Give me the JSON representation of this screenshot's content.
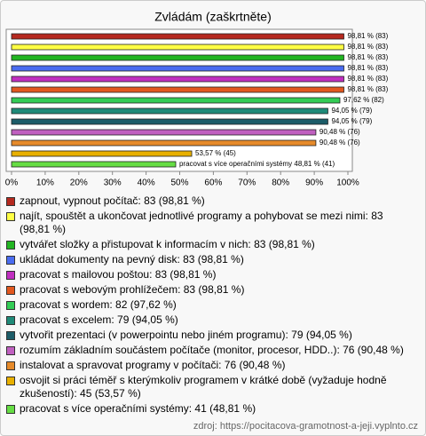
{
  "chart_data": {
    "type": "bar",
    "orientation": "horizontal",
    "title": "Zvládám (zaškrtněte)",
    "categories": [
      "zapnout, vypnout počítač: 83 (98,81 %)",
      "najít, spouštět a ukončovat jednotlivé programy a pohybovat se mezi nimi: 83 (98,81 %)",
      "vytvářet složky a přistupovat k informacím v nich: 83 (98,81 %)",
      "ukládat dokumenty na pevný disk: 83 (98,81 %)",
      "pracovat s mailovou poštou: 83 (98,81 %)",
      "pracovat s webovým prohlížečem: 83 (98,81 %)",
      "pracovat s wordem: 82 (97,62 %)",
      "pracovat s excelem: 79 (94,05 %)",
      "vytvořit prezentaci (v powerpointu nebo jiném programu): 79 (94,05 %)",
      "rozumím základním součástem počítače (monitor, procesor, HDD..): 76 (90,48 %)",
      "instalovat a spravovat programy v počítači: 76 (90,48 %)",
      "osvojit si práci téměř s kterýmkoliv programem v krátké době (vyžaduje hodně zkušeností): 45 (53,57 %)",
      "pracovat s více operačními systémy: 41 (48,81 %)"
    ],
    "values": [
      98.81,
      98.81,
      98.81,
      98.81,
      98.81,
      98.81,
      97.62,
      94.05,
      94.05,
      90.48,
      90.48,
      53.57,
      48.81
    ],
    "value_labels": [
      "98,81 % (83)",
      "98,81 % (83)",
      "98,81 % (83)",
      "98,81 % (83)",
      "98,81 % (83)",
      "98,81 % (83)",
      "97,62 % (82)",
      "94,05 % (79)",
      "94,05 % (79)",
      "90,48 % (76)",
      "90,48 % (76)",
      "53,57 % (45)",
      "pracovat s více operačními systémy 48,81 % (41)"
    ],
    "colors": [
      "#b5291f",
      "#ffff44",
      "#22b522",
      "#4a6cf0",
      "#c02fc0",
      "#e2581f",
      "#33cc55",
      "#1f8a78",
      "#1c5c68",
      "#c060c0",
      "#e68a2a",
      "#e8b000",
      "#66dd44"
    ],
    "xlim": [
      0,
      100
    ],
    "xticks": [
      {
        "value": 0,
        "label": "0%"
      },
      {
        "value": 10,
        "label": "10%"
      },
      {
        "value": 20,
        "label": "20%"
      },
      {
        "value": 30,
        "label": "30%"
      },
      {
        "value": 40,
        "label": "40%"
      },
      {
        "value": 50,
        "label": "50%"
      },
      {
        "value": 60,
        "label": "60%"
      },
      {
        "value": 70,
        "label": "70%"
      },
      {
        "value": 80,
        "label": "80%"
      },
      {
        "value": 90,
        "label": "90%"
      },
      {
        "value": 100,
        "label": "100%"
      }
    ],
    "source": "zdroj: https://pocitacova-gramotnost-a-jeji.vyplnto.cz"
  }
}
